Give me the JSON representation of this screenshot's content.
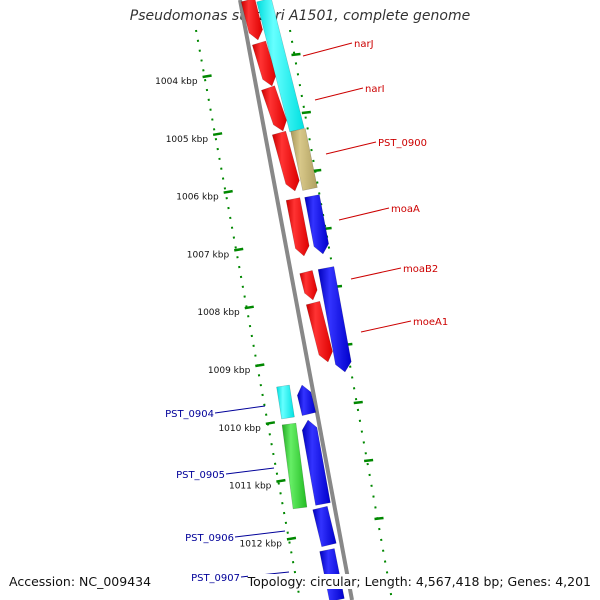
{
  "title": "Pseudomonas stutzeri A1501, complete genome",
  "accession": "Accession: NC_009434",
  "topology": "Topology: circular; Length: 4,567,418 bp; Genes: 4,201",
  "colors": {
    "backbone": "#888888",
    "tick": "#008800",
    "red_gene": "#ff0000",
    "blue_gene": "#0000ee",
    "cyan_gene": "#00ffff",
    "tan_gene": "#c8b87a",
    "green_gene": "#33cc33",
    "label_red": "#cc0000",
    "label_blue": "#000099"
  },
  "scale_ticks": [
    {
      "label": "1004 kbp"
    },
    {
      "label": "1005 kbp"
    },
    {
      "label": "1006 kbp"
    },
    {
      "label": "1007 kbp"
    },
    {
      "label": "1008 kbp"
    },
    {
      "label": "1009 kbp"
    },
    {
      "label": "1010 kbp"
    },
    {
      "label": "1011 kbp"
    },
    {
      "label": "1012 kbp"
    }
  ],
  "genes": [
    {
      "name": "narJ",
      "color": "red"
    },
    {
      "name": "narI",
      "color": "red"
    },
    {
      "name": "PST_0900",
      "color": "red"
    },
    {
      "name": "moaA",
      "color": "red"
    },
    {
      "name": "moaB2",
      "color": "red"
    },
    {
      "name": "moeA1",
      "color": "red"
    },
    {
      "name": "PST_0904",
      "color": "blue"
    },
    {
      "name": "PST_0905",
      "color": "blue"
    },
    {
      "name": "PST_0906",
      "color": "blue"
    },
    {
      "name": "PST_0907",
      "color": "blue"
    }
  ]
}
